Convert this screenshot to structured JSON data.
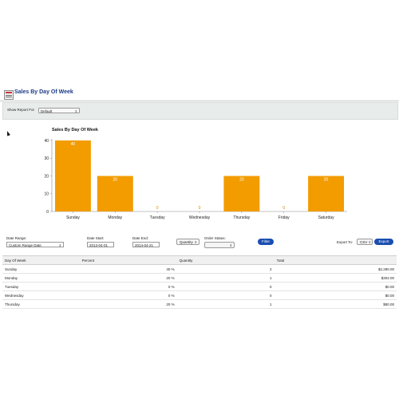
{
  "page": {
    "title": "Sales By Day Of Week"
  },
  "report_bar": {
    "label": "Show Report For",
    "selected": "Default"
  },
  "chart_data": {
    "type": "bar",
    "title": "Sales By Day Of Week",
    "categories": [
      "Sunday",
      "Monday",
      "Tuesday",
      "Wednesday",
      "Thursday",
      "Friday",
      "Saturday"
    ],
    "values": [
      40,
      20,
      0,
      0,
      20,
      0,
      20
    ],
    "ylim": [
      0,
      40
    ],
    "yticks": [
      0,
      10,
      20,
      30,
      40
    ],
    "bar_color": "#f29c00",
    "grid": false,
    "legend": "none"
  },
  "filters": {
    "date_range_label": "Date Range:",
    "date_range_value": "Custom Range Date",
    "date_start_label": "Date Start:",
    "date_start_value": "2013-04-01",
    "date_end_label": "Date End:",
    "date_end_value": "2014-04-21",
    "metric_value": "Quantity",
    "order_status_label": "Order Status:",
    "order_status_value": "",
    "filter_button": "Filter",
    "export_label": "Export To:",
    "export_format": "CSV",
    "export_button": "Export"
  },
  "table": {
    "headers": [
      "Day Of Week",
      "Percent",
      "Quantity",
      "Total"
    ],
    "rows": [
      [
        "Sunday",
        "40 %",
        "2",
        "$2,280.00"
      ],
      [
        "Monday",
        "20 %",
        "1",
        "$302.00"
      ],
      [
        "Tuesday",
        "0 %",
        "0",
        "$0.00"
      ],
      [
        "Wednesday",
        "0 %",
        "0",
        "$0.00"
      ],
      [
        "Thursday",
        "20 %",
        "1",
        "$80.00"
      ]
    ]
  },
  "colors": {
    "title_blue": "#1a3a8a",
    "button_blue": "#1b4eb0",
    "bar_orange": "#f29c00"
  }
}
